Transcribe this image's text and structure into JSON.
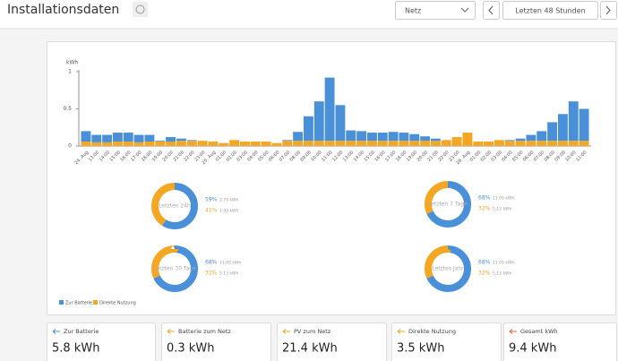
{
  "header": {
    "title": "Installationsdaten",
    "select": "Netz",
    "range": "Letzten 48 Stunden"
  },
  "chart_data": {
    "type": "bar",
    "stacked": true,
    "ylabel": "kWh",
    "ylim": [
      0,
      1
    ],
    "yticks": [
      0,
      0.5,
      1
    ],
    "grid": false,
    "legend": "bottom-left",
    "categories": [
      "24. Aug",
      "13:00",
      "14:00",
      "15:00",
      "16:00",
      "17:00",
      "18:00",
      "19:00",
      "20:00",
      "21:00",
      "22:00",
      "23:00",
      "25. Aug",
      "01:00",
      "02:00",
      "03:00",
      "04:00",
      "05:00",
      "06:00",
      "07:00",
      "08:00",
      "09:00",
      "10:00",
      "11:00",
      "12:00",
      "13:00",
      "14:00",
      "15:00",
      "16:00",
      "17:00",
      "18:00",
      "19:00",
      "20:00",
      "21:00",
      "22:00",
      "23:00",
      "26. Aug",
      "01:00",
      "02:00",
      "03:00",
      "04:00",
      "05:00",
      "06:00",
      "07:00",
      "08:00",
      "09:00",
      "10:00",
      "11:00"
    ],
    "series": [
      {
        "name": "Zur Batterie",
        "color": "#4a90d9",
        "values": [
          0.14,
          0.1,
          0.1,
          0.12,
          0.12,
          0.1,
          0.09,
          0.01,
          0.06,
          0.03,
          0.01,
          0,
          0,
          0,
          0,
          0,
          0,
          0,
          0,
          0.01,
          0.12,
          0.33,
          0.53,
          0.85,
          0.48,
          0.14,
          0.13,
          0.11,
          0.11,
          0.12,
          0.11,
          0.09,
          0.06,
          0.03,
          0,
          0,
          0,
          0,
          0,
          0,
          0.01,
          0.03,
          0.08,
          0.13,
          0.25,
          0.36,
          0.53,
          0.43
        ]
      },
      {
        "name": "Direkte Nutzung",
        "color": "#f5a623",
        "values": [
          0.06,
          0.05,
          0.05,
          0.06,
          0.06,
          0.05,
          0.06,
          0.06,
          0.06,
          0.07,
          0.07,
          0.07,
          0.06,
          0.04,
          0.08,
          0.06,
          0.06,
          0.06,
          0.04,
          0.07,
          0.07,
          0.07,
          0.07,
          0.07,
          0.07,
          0.07,
          0.07,
          0.07,
          0.07,
          0.07,
          0.07,
          0.07,
          0.07,
          0.07,
          0.08,
          0.12,
          0.18,
          0.06,
          0.06,
          0.08,
          0.07,
          0.07,
          0.07,
          0.07,
          0.07,
          0.07,
          0.07,
          0.07
        ]
      }
    ]
  },
  "donuts": [
    {
      "label": "Letzten 24h",
      "values": [
        59,
        41
      ],
      "value_labels": [
        "59%",
        "41%"
      ],
      "amounts": [
        "2.79 kWh",
        "1.93 kWh"
      ]
    },
    {
      "label": "Letzten 7 Tage",
      "values": [
        68,
        32
      ],
      "value_labels": [
        "68%",
        "32%"
      ],
      "amounts": [
        "11.05 kWh",
        "5.13 kWh"
      ]
    },
    {
      "label": "Letzten 30 Tage",
      "values": [
        68,
        32
      ],
      "value_labels": [
        "68%",
        "32%"
      ],
      "amounts": [
        "11.05 kWh",
        "5.13 kWh"
      ]
    },
    {
      "label": "Letztes Jahr",
      "values": [
        68,
        32
      ],
      "value_labels": [
        "68%",
        "32%"
      ],
      "amounts": [
        "11.05 kWh",
        "5.13 kWh"
      ]
    }
  ],
  "cards": [
    {
      "label": "Zur Batterie",
      "value": "5.8 kWh"
    },
    {
      "label": "Batterie zum Netz",
      "value": "0.3 kWh"
    },
    {
      "label": "PV zum Netz",
      "value": "21.4 kWh"
    },
    {
      "label": "Direkte Nutzung",
      "value": "3.5 kWh"
    },
    {
      "label": "Gesamt kWh",
      "value": "9.4 kWh"
    }
  ]
}
